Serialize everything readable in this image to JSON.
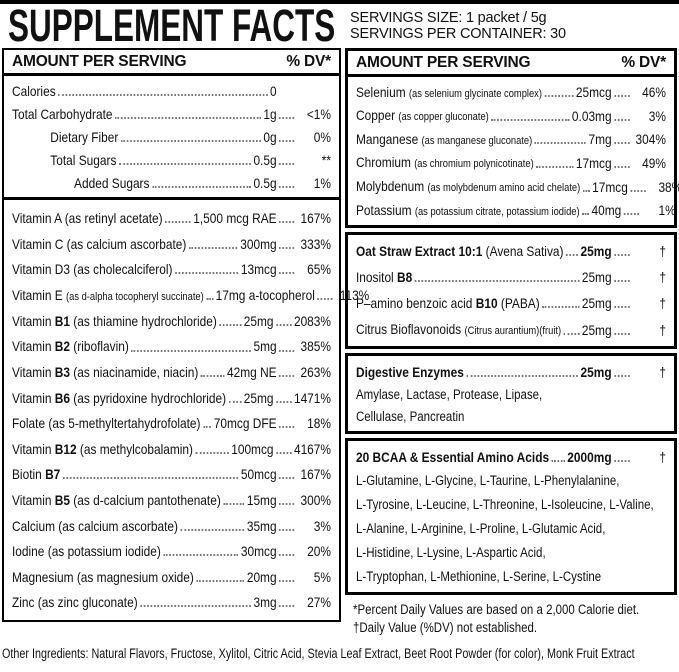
{
  "colors": {
    "text": "#111111",
    "border": "#000000",
    "background": "#ffffff",
    "leader": "#777777"
  },
  "header": {
    "title": "SUPPLEMENT FACTS",
    "serving_size": "SERVINGS SIZE: 1 packet / 5g",
    "servings_per_container": "SERVINGS PER CONTAINER: 30"
  },
  "column_header": {
    "amount": "AMOUNT PER SERVING",
    "dv": "% DV*"
  },
  "left": {
    "macros": [
      {
        "parts": [
          {
            "t": "Calories"
          }
        ],
        "amt": "0",
        "pct": ""
      },
      {
        "parts": [
          {
            "t": "Total Carbohydrate"
          }
        ],
        "amt": "1g",
        "pct": "<1%"
      },
      {
        "parts": [
          {
            "t": "Dietary Fiber"
          }
        ],
        "amt": "0g",
        "pct": "0%",
        "indent": 1
      },
      {
        "parts": [
          {
            "t": "Total Sugars"
          }
        ],
        "amt": "0.5g",
        "pct": "**",
        "indent": 1
      },
      {
        "parts": [
          {
            "t": "Added Sugars"
          }
        ],
        "amt": "0.5g",
        "pct": "1%",
        "indent": 2
      }
    ],
    "vitamins": [
      {
        "parts": [
          {
            "t": "Vitamin A (as retinyl acetate)"
          }
        ],
        "amt": "1,500 mcg RAE",
        "pct": "167%"
      },
      {
        "parts": [
          {
            "t": "Vitamin C (as calcium ascorbate)"
          }
        ],
        "amt": "300mg",
        "pct": "333%"
      },
      {
        "parts": [
          {
            "t": "Vitamin D3 (as cholecalciferol)"
          }
        ],
        "amt": "13mcg",
        "pct": "65%"
      },
      {
        "parts": [
          {
            "t": "Vitamin E "
          },
          {
            "t": "(as d-alpha tocopheryl succinate)",
            "s": true
          }
        ],
        "amt": "17mg a-tocopherol",
        "pct": "113%"
      },
      {
        "parts": [
          {
            "t": "Vitamin "
          },
          {
            "t": "B1",
            "b": true
          },
          {
            "t": " (as thiamine hydrochloride)"
          }
        ],
        "amt": "25mg",
        "pct": "2083%"
      },
      {
        "parts": [
          {
            "t": "Vitamin "
          },
          {
            "t": "B2",
            "b": true
          },
          {
            "t": " (riboflavin)"
          }
        ],
        "amt": "5mg",
        "pct": "385%"
      },
      {
        "parts": [
          {
            "t": "Vitamin "
          },
          {
            "t": "B3",
            "b": true
          },
          {
            "t": " (as niacinamide, niacin)"
          }
        ],
        "amt": "42mg NE",
        "pct": "263%"
      },
      {
        "parts": [
          {
            "t": "Vitamin "
          },
          {
            "t": "B6",
            "b": true
          },
          {
            "t": " (as pyridoxine hydrochloride)"
          }
        ],
        "amt": "25mg",
        "pct": "1471%"
      },
      {
        "parts": [
          {
            "t": "Folate (as 5-methyltertahydrofolate)"
          }
        ],
        "amt": "70mcg DFE",
        "pct": "18%"
      },
      {
        "parts": [
          {
            "t": "Vitamin "
          },
          {
            "t": "B12",
            "b": true
          },
          {
            "t": " (as methylcobalamin)"
          }
        ],
        "amt": "100mcg",
        "pct": "4167%"
      },
      {
        "parts": [
          {
            "t": "Biotin "
          },
          {
            "t": "B7",
            "b": true
          }
        ],
        "amt": "50mcg",
        "pct": "167%"
      },
      {
        "parts": [
          {
            "t": "Vitamin "
          },
          {
            "t": "B5",
            "b": true
          },
          {
            "t": " (as d-calcium pantothenate)"
          }
        ],
        "amt": "15mg",
        "pct": "300%"
      },
      {
        "parts": [
          {
            "t": "Calcium (as calcium ascorbate)"
          }
        ],
        "amt": "35mg",
        "pct": "3%"
      },
      {
        "parts": [
          {
            "t": "Iodine (as potassium iodide)"
          }
        ],
        "amt": "30mcg",
        "pct": "20%"
      },
      {
        "parts": [
          {
            "t": "Magnesium (as magnesium oxide)"
          }
        ],
        "amt": "20mg",
        "pct": "5%"
      },
      {
        "parts": [
          {
            "t": "Zinc (as zinc gluconate)"
          }
        ],
        "amt": "3mg",
        "pct": "27%"
      }
    ]
  },
  "right": {
    "minerals": [
      {
        "parts": [
          {
            "t": "Selenium "
          },
          {
            "t": "(as selenium glycinate complex)",
            "s": true
          }
        ],
        "amt": "25mcg",
        "pct": "46%"
      },
      {
        "parts": [
          {
            "t": "Copper "
          },
          {
            "t": "(as copper gluconate)",
            "s": true
          }
        ],
        "amt": "0.03mg",
        "pct": "3%"
      },
      {
        "parts": [
          {
            "t": "Manganese "
          },
          {
            "t": "(as manganese gluconate)",
            "s": true
          }
        ],
        "amt": "7mg",
        "pct": "304%"
      },
      {
        "parts": [
          {
            "t": "Chromium "
          },
          {
            "t": "(as chromium polynicotinate)",
            "s": true
          }
        ],
        "amt": "17mcg",
        "pct": "49%"
      },
      {
        "parts": [
          {
            "t": "Molybdenum "
          },
          {
            "t": "(as molybdenum amino acid chelate)",
            "s": true
          }
        ],
        "amt": "17mcg",
        "pct": "38%"
      },
      {
        "parts": [
          {
            "t": "Potassium "
          },
          {
            "t": "(as potassium citrate, potassium iodide)",
            "s": true
          }
        ],
        "amt": "40mg",
        "pct": "1%"
      }
    ],
    "botanicals": [
      {
        "parts": [
          {
            "t": "Oat Straw Extract 10:1",
            "b": true
          },
          {
            "t": " (Avena Sativa)"
          }
        ],
        "amt": "25mg",
        "amtB": true,
        "pct": "†"
      },
      {
        "parts": [
          {
            "t": "Inositol "
          },
          {
            "t": "B8",
            "b": true
          }
        ],
        "amt": "25mg",
        "pct": "†"
      },
      {
        "parts": [
          {
            "t": "P–amino benzoic acid "
          },
          {
            "t": "B10",
            "b": true
          },
          {
            "t": " (PABA)"
          }
        ],
        "amt": "25mg",
        "pct": "†"
      },
      {
        "parts": [
          {
            "t": "Citrus Bioflavonoids "
          },
          {
            "t": "(Citrus aurantium)(fruit)",
            "s": true
          }
        ],
        "amt": "25mg",
        "pct": "†"
      }
    ],
    "enzymes": {
      "title_row": {
        "parts": [
          {
            "t": "Digestive Enzymes",
            "b": true
          }
        ],
        "amt": "25mg",
        "amtB": true,
        "pct": "†"
      },
      "lines": [
        "Amylase, Lactase, Protease, Lipase,",
        "Cellulase, Pancreatin"
      ]
    },
    "bcaa": {
      "title_row": {
        "parts": [
          {
            "t": "20 BCAA & Essential Amino Acids",
            "b": true
          }
        ],
        "amt": "2000mg",
        "amtB": true,
        "pct": "†"
      },
      "lines": [
        "L-Glutamine, L-Glycine, L-Taurine, L-Phenylalanine,",
        "L-Tyrosine, L-Leucine, L-Threonine, L-Isoleucine,  L-Valine,",
        "L-Alanine, L-Arginine, L-Proline, L-Glutamic Acid,",
        "L-Histidine, L-Lysine, L-Aspartic Acid,",
        "L-Tryptophan, L-Methionine, L-Serine, L-Cystine"
      ]
    },
    "footnotes": [
      "*Percent Daily Values are based on a 2,000 Calorie diet.",
      "†Daily Value (%DV) not established."
    ]
  },
  "other_ingredients": "Other Ingredients: Natural Flavors, Fructose, Xylitol, Citric Acid, Stevia Leaf Extract, Beet Root Powder (for color), Monk Fruit Extract"
}
